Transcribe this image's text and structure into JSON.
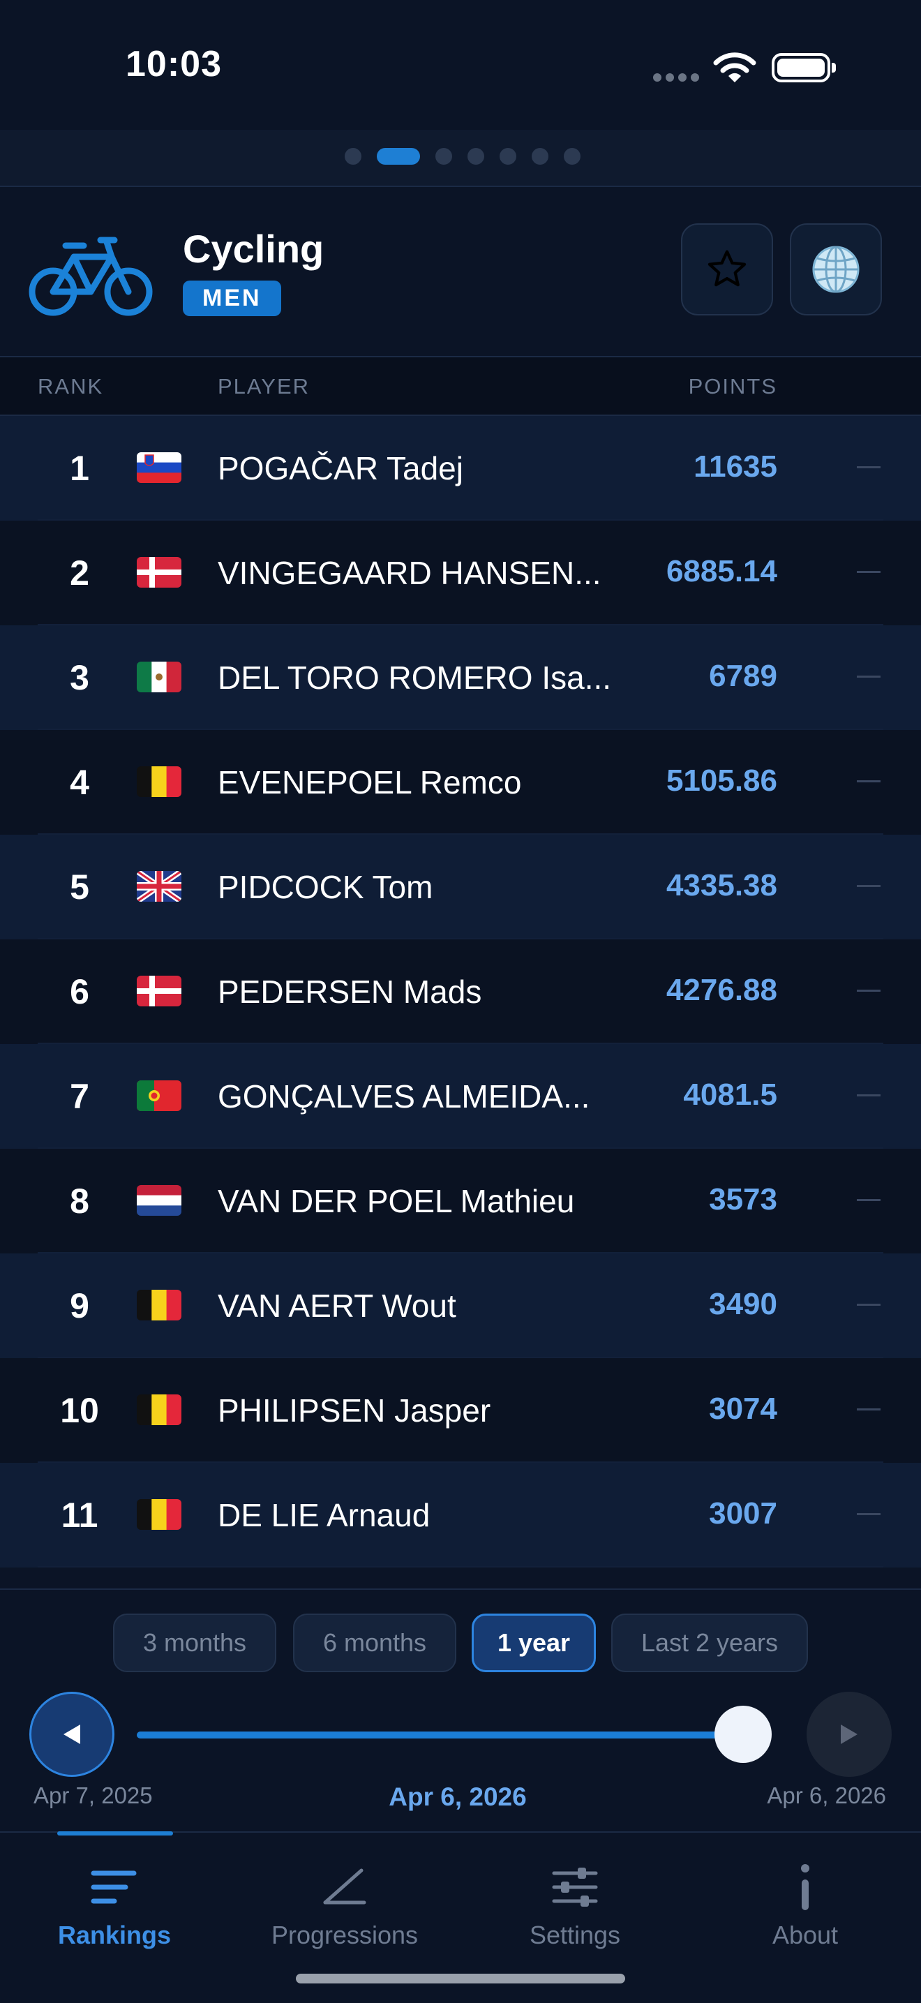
{
  "status_bar": {
    "time": "10:03"
  },
  "pager": {
    "count": 7,
    "active_index": 1
  },
  "header": {
    "title": "Cycling",
    "badge": "MEN",
    "sport_icon": "bicycle-icon"
  },
  "columns": {
    "rank": "RANK",
    "player": "PLAYER",
    "points": "POINTS"
  },
  "rankings": [
    {
      "rank": "1",
      "flag": "slovenia",
      "name": "POGAČAR Tadej",
      "points": "11635",
      "trend": "—"
    },
    {
      "rank": "2",
      "flag": "denmark",
      "name": "VINGEGAARD HANSEN...",
      "points": "6885.14",
      "trend": "—"
    },
    {
      "rank": "3",
      "flag": "mexico",
      "name": "DEL TORO ROMERO Isa...",
      "points": "6789",
      "trend": "—"
    },
    {
      "rank": "4",
      "flag": "belgium",
      "name": "EVENEPOEL Remco",
      "points": "5105.86",
      "trend": "—"
    },
    {
      "rank": "5",
      "flag": "uk",
      "name": "PIDCOCK Tom",
      "points": "4335.38",
      "trend": "—"
    },
    {
      "rank": "6",
      "flag": "denmark",
      "name": "PEDERSEN Mads",
      "points": "4276.88",
      "trend": "—"
    },
    {
      "rank": "7",
      "flag": "portugal",
      "name": "GONÇALVES ALMEIDA...",
      "points": "4081.5",
      "trend": "—"
    },
    {
      "rank": "8",
      "flag": "netherlands",
      "name": "VAN DER POEL Mathieu",
      "points": "3573",
      "trend": "—"
    },
    {
      "rank": "9",
      "flag": "belgium",
      "name": "VAN AERT Wout",
      "points": "3490",
      "trend": "—"
    },
    {
      "rank": "10",
      "flag": "belgium",
      "name": "PHILIPSEN Jasper",
      "points": "3074",
      "trend": "—"
    },
    {
      "rank": "11",
      "flag": "belgium",
      "name": "DE LIE Arnaud",
      "points": "3007",
      "trend": "—"
    }
  ],
  "periods": [
    {
      "label": "3 months",
      "active": false
    },
    {
      "label": "6 months",
      "active": false
    },
    {
      "label": "1 year",
      "active": true
    },
    {
      "label": "Last 2 years",
      "active": false
    }
  ],
  "timeline": {
    "start": "Apr 7, 2025",
    "current": "Apr 6, 2026",
    "end": "Apr 6, 2026",
    "position": 1.0
  },
  "tabs": [
    {
      "label": "Rankings",
      "icon": "rankings-icon",
      "active": true
    },
    {
      "label": "Progressions",
      "icon": "progressions-icon",
      "active": false
    },
    {
      "label": "Settings",
      "icon": "sliders-icon",
      "active": false
    },
    {
      "label": "About",
      "icon": "info-icon",
      "active": false
    }
  ],
  "colors": {
    "accent": "#1e7fd4",
    "points": "#6aa8ee",
    "background": "#0b1426"
  }
}
